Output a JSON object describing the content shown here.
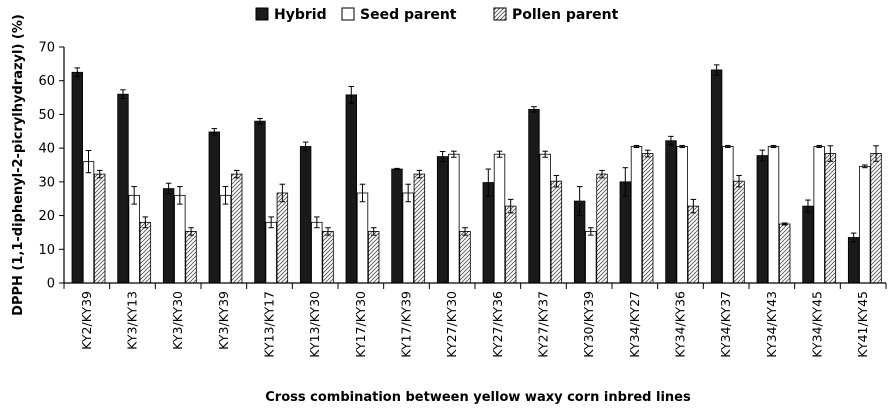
{
  "chart_data": {
    "type": "bar",
    "title": "",
    "xlabel": "Cross combination between yellow waxy corn inbred lines",
    "ylabel": "DPPH (1,1-diphenyl-2-picrylhydrazyl) (%)",
    "ylim": [
      0,
      70
    ],
    "yticks": [
      0,
      10,
      20,
      30,
      40,
      50,
      60,
      70
    ],
    "grid": false,
    "legend_position": "top",
    "error_bars": true,
    "categories": [
      "KY2/KY39",
      "KY3/KY13",
      "KY3/KY30",
      "KY3/KY39",
      "KY13/KY17",
      "KY13/KY30",
      "KY17/KY30",
      "KY17/KY39",
      "KY27/KY30",
      "KY27/KY36",
      "KY27/KY37",
      "KY30/KY39",
      "KY34/KY27",
      "KY34/KY36",
      "KY34/KY37",
      "KY34/KY43",
      "KY34/KY45",
      "KY41/KY45"
    ],
    "series": [
      {
        "name": "Hybrid",
        "fill": "#1a1a1a",
        "values": [
          62.5,
          56.0,
          28.0,
          44.8,
          48.0,
          40.5,
          55.8,
          33.8,
          37.5,
          29.8,
          51.5,
          24.3,
          30.0,
          42.2,
          63.2,
          37.8,
          22.8,
          13.5
        ],
        "errors": [
          1.3,
          1.3,
          1.6,
          1.0,
          0.8,
          1.3,
          2.5,
          0.2,
          1.5,
          4.0,
          0.8,
          4.3,
          4.2,
          1.3,
          1.5,
          1.6,
          1.8,
          1.3
        ]
      },
      {
        "name": "Seed parent",
        "fill": "#ffffff",
        "values": [
          36.0,
          26.0,
          26.0,
          26.0,
          18.0,
          18.0,
          26.7,
          26.7,
          38.2,
          38.2,
          38.2,
          15.3,
          40.5,
          40.5,
          40.5,
          40.5,
          40.5,
          34.6
        ],
        "errors": [
          3.3,
          2.6,
          2.6,
          2.6,
          1.6,
          1.6,
          2.6,
          2.6,
          0.9,
          0.9,
          0.9,
          1.1,
          0.3,
          0.3,
          0.3,
          0.3,
          0.3,
          0.4
        ]
      },
      {
        "name": "Pollen parent",
        "fill": "hatched",
        "values": [
          32.3,
          18.0,
          15.3,
          32.3,
          26.7,
          15.3,
          15.3,
          32.3,
          15.3,
          22.8,
          30.2,
          32.3,
          38.4,
          22.8,
          30.2,
          17.5,
          38.4,
          38.4
        ],
        "errors": [
          1.1,
          1.6,
          1.1,
          1.1,
          2.6,
          1.1,
          1.1,
          1.1,
          1.1,
          2.0,
          1.7,
          1.1,
          1.0,
          2.0,
          1.7,
          0.3,
          2.3,
          2.3
        ]
      }
    ]
  }
}
